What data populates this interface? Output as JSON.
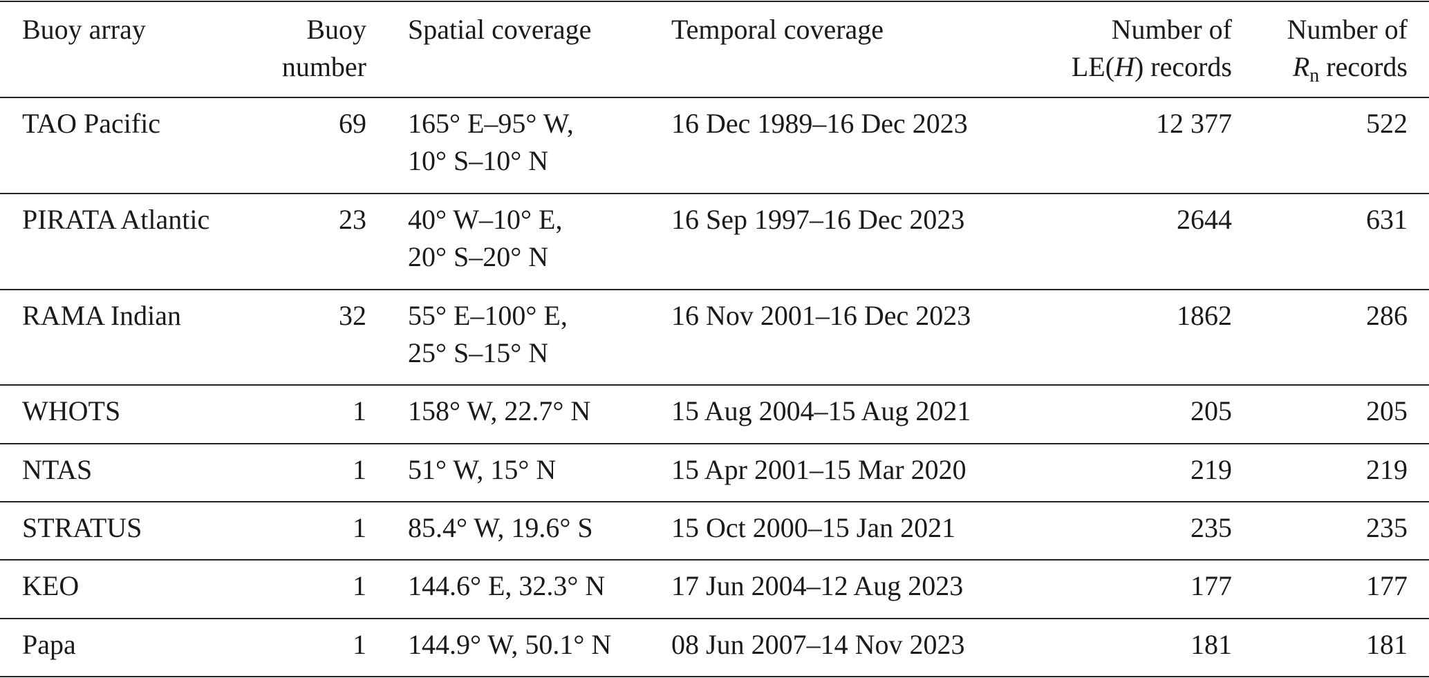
{
  "table": {
    "header": [
      [
        [
          "Buoy array"
        ]
      ],
      [
        [
          "Buoy"
        ],
        [
          "number"
        ]
      ],
      [
        [
          "Spatial coverage"
        ]
      ],
      [
        [
          "Temporal coverage"
        ]
      ],
      [
        [
          "Number of"
        ],
        [
          "LE(",
          {
            "text": "H",
            "italic": true
          },
          ") records"
        ]
      ],
      [
        [
          "Number of"
        ],
        [
          {
            "text": "R",
            "italic": true
          },
          {
            "text": "n",
            "sub": true
          },
          " records"
        ]
      ]
    ],
    "rows": [
      [
        "TAO Pacific",
        "69",
        [
          "165° E–95° W,",
          "10° S–10° N"
        ],
        "16 Dec 1989–16 Dec 2023",
        "12 377",
        "522"
      ],
      [
        "PIRATA Atlantic",
        "23",
        [
          "40° W–10° E,",
          "20° S–20° N"
        ],
        "16 Sep 1997–16 Dec 2023",
        "2644",
        "631"
      ],
      [
        "RAMA Indian",
        "32",
        [
          "55° E–100° E,",
          "25° S–15° N"
        ],
        "16 Nov 2001–16 Dec 2023",
        "1862",
        "286"
      ],
      [
        "WHOTS",
        "1",
        [
          "158° W, 22.7° N"
        ],
        "15 Aug 2004–15 Aug 2021",
        "205",
        "205"
      ],
      [
        "NTAS",
        "1",
        [
          "51° W, 15° N"
        ],
        "15 Apr 2001–15 Mar 2020",
        "219",
        "219"
      ],
      [
        "STRATUS",
        "1",
        [
          "85.4° W, 19.6° S"
        ],
        "15 Oct 2000–15 Jan 2021",
        "235",
        "235"
      ],
      [
        "KEO",
        "1",
        [
          "144.6° E, 32.3° N"
        ],
        "17 Jun 2004–12 Aug 2023",
        "177",
        "177"
      ],
      [
        "Papa",
        "1",
        [
          "144.9° W, 50.1° N"
        ],
        "08 Jun 2007–14 Nov 2023",
        "181",
        "181"
      ]
    ]
  }
}
